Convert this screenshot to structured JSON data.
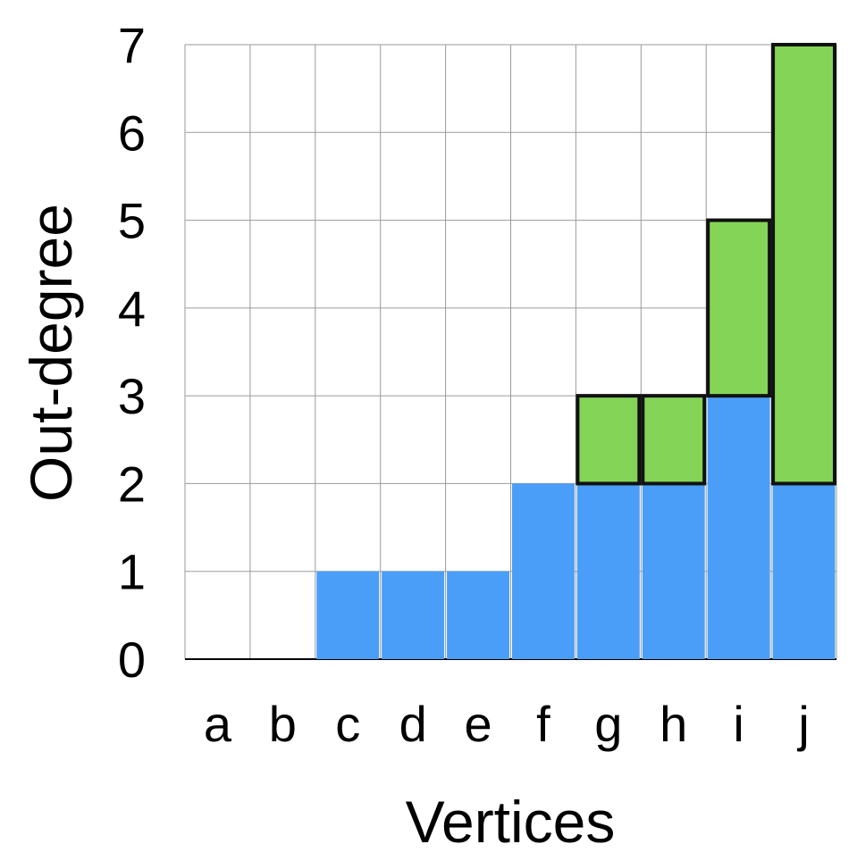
{
  "chart_data": {
    "type": "bar",
    "stacked": true,
    "xlabel": "Vertices",
    "ylabel": "Out-degree",
    "categories": [
      "a",
      "b",
      "c",
      "d",
      "e",
      "f",
      "g",
      "h",
      "i",
      "j"
    ],
    "y_ticks": [
      "0",
      "1",
      "2",
      "3",
      "4",
      "5",
      "6",
      "7"
    ],
    "ylim": [
      0,
      7
    ],
    "grid": true,
    "series": [
      {
        "values": [
          0,
          0,
          1,
          1,
          1,
          2,
          2,
          2,
          3,
          2
        ],
        "color": "#4a9ef7",
        "outlined": false
      },
      {
        "values": [
          0,
          0,
          0,
          0,
          0,
          0,
          1,
          1,
          2,
          5
        ],
        "color": "#84d557",
        "outlined": true
      }
    ]
  }
}
